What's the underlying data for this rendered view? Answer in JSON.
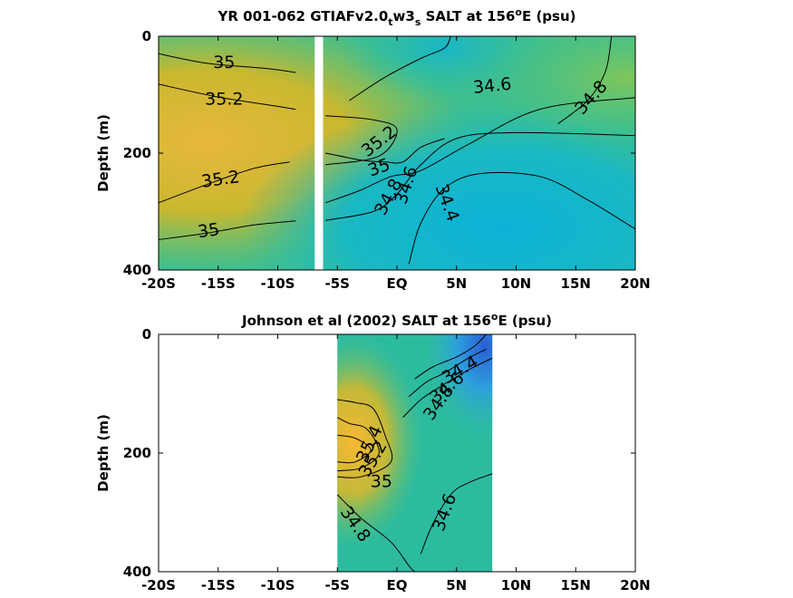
{
  "chart_data": [
    {
      "type": "heatmap",
      "title_main": "YR 001-062 GTIAFv2.0",
      "title_sub1": "t",
      "title_mid": "w3",
      "title_sub2": "s",
      "title_tail": " SALT at 156",
      "title_sup": "o",
      "title_end": "E (psu)",
      "ylabel": "Depth (m)",
      "xlim": [
        -20,
        20
      ],
      "ylim": [
        0,
        400
      ],
      "x_ticks": [
        {
          "v": -20,
          "label": "-20S"
        },
        {
          "v": -15,
          "label": "-15S"
        },
        {
          "v": -10,
          "label": "-10S"
        },
        {
          "v": -5,
          "label": "-5S"
        },
        {
          "v": 0,
          "label": "EQ"
        },
        {
          "v": 5,
          "label": "5N"
        },
        {
          "v": 10,
          "label": "10N"
        },
        {
          "v": 15,
          "label": "15N"
        },
        {
          "v": 20,
          "label": "20N"
        }
      ],
      "y_ticks": [
        {
          "v": 0,
          "label": "0"
        },
        {
          "v": 200,
          "label": "200"
        },
        {
          "v": 400,
          "label": "400"
        }
      ],
      "gap_lat": [
        -6.9,
        -6.2
      ],
      "contours": [
        {
          "level": "35",
          "pts": [
            [
              -20,
              30
            ],
            [
              -16,
              46
            ],
            [
              -11,
              55
            ],
            [
              -8.5,
              62
            ]
          ]
        },
        {
          "level": "35.2",
          "pts": [
            [
              -20,
              82
            ],
            [
              -15,
              104
            ],
            [
              -10,
              120
            ],
            [
              -8.5,
              125
            ]
          ]
        },
        {
          "level": "35.2",
          "pts": [
            [
              -20,
              285
            ],
            [
              -16,
              254
            ],
            [
              -12,
              226
            ],
            [
              -9,
              215
            ]
          ]
        },
        {
          "level": "35",
          "pts": [
            [
              -20,
              348
            ],
            [
              -16,
              337
            ],
            [
              -12,
              323
            ],
            [
              -8.5,
              316
            ]
          ]
        },
        {
          "level": "34.6",
          "pts": [
            [
              -4,
              110
            ],
            [
              -1,
              70
            ],
            [
              2,
              38
            ],
            [
              4,
              20
            ],
            [
              4.5,
              0
            ]
          ]
        },
        {
          "level": "34.8",
          "pts": [
            [
              13.5,
              150
            ],
            [
              16,
              110
            ],
            [
              17.5,
              60
            ],
            [
              18,
              0
            ]
          ]
        },
        {
          "level": "35.2",
          "pts": [
            [
              -6,
              136
            ],
            [
              -2,
              143
            ],
            [
              0,
              160
            ],
            [
              -1.5,
              205
            ],
            [
              -6,
              220
            ]
          ]
        },
        {
          "level": "35",
          "pts": [
            [
              -6,
              200
            ],
            [
              -3,
              212
            ],
            [
              -1,
              215
            ],
            [
              0.5,
              215
            ],
            [
              2,
              190
            ],
            [
              4,
              175
            ]
          ]
        },
        {
          "level": "34.8",
          "pts": [
            [
              -6,
              285
            ],
            [
              -3,
              263
            ],
            [
              -0.5,
              240
            ],
            [
              2,
              230
            ],
            [
              6,
              185
            ],
            [
              12,
              125
            ],
            [
              20,
              105
            ]
          ]
        },
        {
          "level": "34.6",
          "pts": [
            [
              -6,
              315
            ],
            [
              -2,
              300
            ],
            [
              0,
              270
            ],
            [
              2,
              220
            ],
            [
              5,
              175
            ],
            [
              10,
              165
            ],
            [
              20,
              170
            ]
          ]
        },
        {
          "level": "34.4",
          "pts": [
            [
              1,
              390
            ],
            [
              2,
              320
            ],
            [
              4,
              260
            ],
            [
              7,
              235
            ],
            [
              12,
              240
            ],
            [
              16,
              280
            ],
            [
              20,
              330
            ]
          ]
        }
      ],
      "contour_labels": [
        {
          "text": "35",
          "lat": -14.5,
          "depth": 45,
          "rot": 0
        },
        {
          "text": "35.2",
          "lat": -14.5,
          "depth": 108,
          "rot": 0
        },
        {
          "text": "35.2",
          "lat": -14.8,
          "depth": 245,
          "rot": -8
        },
        {
          "text": "35",
          "lat": -15.8,
          "depth": 333,
          "rot": -8
        },
        {
          "text": "34.6",
          "lat": 8,
          "depth": 85,
          "rot": -6
        },
        {
          "text": "34.8",
          "lat": 16.3,
          "depth": 105,
          "rot": -48
        },
        {
          "text": "35.2",
          "lat": -1.5,
          "depth": 180,
          "rot": -38
        },
        {
          "text": "35",
          "lat": -1.5,
          "depth": 225,
          "rot": -20
        },
        {
          "text": "34.8",
          "lat": -0.7,
          "depth": 275,
          "rot": -62
        },
        {
          "text": "34.6",
          "lat": 0.8,
          "depth": 255,
          "rot": -72
        },
        {
          "text": "34.4",
          "lat": 4.2,
          "depth": 285,
          "rot": 70
        }
      ]
    },
    {
      "type": "heatmap",
      "title_main": "Johnson et al (2002) SALT at 156",
      "title_sup": "o",
      "title_end": "E (psu)",
      "ylabel": "Depth (m)",
      "xlim": [
        -20,
        20
      ],
      "ylim": [
        0,
        400
      ],
      "data_lat_range": [
        -5,
        8
      ],
      "x_ticks": [
        {
          "v": -20,
          "label": "-20S"
        },
        {
          "v": -15,
          "label": "-15S"
        },
        {
          "v": -10,
          "label": "-10S"
        },
        {
          "v": -5,
          "label": "-5S"
        },
        {
          "v": 0,
          "label": "EQ"
        },
        {
          "v": 5,
          "label": "5N"
        },
        {
          "v": 10,
          "label": "10N"
        },
        {
          "v": 15,
          "label": "15N"
        },
        {
          "v": 20,
          "label": "20N"
        }
      ],
      "y_ticks": [
        {
          "v": 0,
          "label": "0"
        },
        {
          "v": 200,
          "label": "200"
        },
        {
          "v": 400,
          "label": "400"
        }
      ],
      "contours": [
        {
          "level": "34.4",
          "pts": [
            [
              1.5,
              75
            ],
            [
              3,
              55
            ],
            [
              5,
              38
            ],
            [
              6.5,
              20
            ],
            [
              7.5,
              0
            ]
          ]
        },
        {
          "level": "34.6",
          "pts": [
            [
              1,
              105
            ],
            [
              2.5,
              80
            ],
            [
              4,
              65
            ],
            [
              6,
              40
            ],
            [
              7.5,
              25
            ]
          ]
        },
        {
          "level": "34.8",
          "pts": [
            [
              0.5,
              140
            ],
            [
              2,
              110
            ],
            [
              3.5,
              90
            ],
            [
              6,
              60
            ],
            [
              8,
              40
            ]
          ]
        },
        {
          "level": "35",
          "pts": [
            [
              -5,
              110
            ],
            [
              -3.5,
              115
            ],
            [
              -2,
              125
            ],
            [
              -1,
              170
            ],
            [
              -0.5,
              215
            ],
            [
              -3,
              240
            ],
            [
              -5,
              240
            ]
          ]
        },
        {
          "level": "35.2",
          "pts": [
            [
              -5,
              140
            ],
            [
              -4,
              150
            ],
            [
              -2.5,
              160
            ],
            [
              -1.5,
              200
            ],
            [
              -3,
              225
            ],
            [
              -5,
              230
            ]
          ]
        },
        {
          "level": "35.4",
          "pts": [
            [
              -5,
              170
            ],
            [
              -3.5,
              175
            ],
            [
              -2.2,
              195
            ],
            [
              -3.5,
              215
            ],
            [
              -5,
              215
            ]
          ]
        },
        {
          "level": "34.8",
          "pts": [
            [
              -5,
              270
            ],
            [
              -3,
              310
            ],
            [
              -0.5,
              350
            ],
            [
              1,
              390
            ],
            [
              1.5,
              400
            ]
          ]
        },
        {
          "level": "34.6",
          "pts": [
            [
              2,
              370
            ],
            [
              3,
              320
            ],
            [
              4.5,
              270
            ],
            [
              6,
              250
            ],
            [
              8,
              235
            ]
          ]
        }
      ],
      "contour_labels": [
        {
          "text": "34.4",
          "lat": 5.3,
          "depth": 60,
          "rot": -30
        },
        {
          "text": "34.6",
          "lat": 4.2,
          "depth": 90,
          "rot": -40
        },
        {
          "text": "34.8",
          "lat": 3.5,
          "depth": 115,
          "rot": -55
        },
        {
          "text": "35.4",
          "lat": -2.3,
          "depth": 185,
          "rot": -65
        },
        {
          "text": "35.2",
          "lat": -2,
          "depth": 210,
          "rot": -60
        },
        {
          "text": "35",
          "lat": -1.3,
          "depth": 248,
          "rot": 0
        },
        {
          "text": "34.8",
          "lat": -3.5,
          "depth": 320,
          "rot": 55
        },
        {
          "text": "34.6",
          "lat": 4,
          "depth": 300,
          "rot": -70
        }
      ]
    }
  ]
}
